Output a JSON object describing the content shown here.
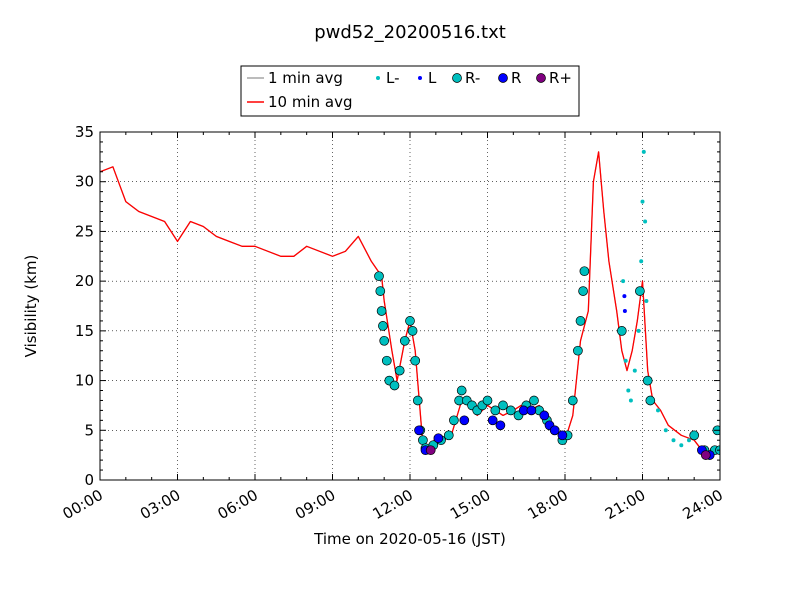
{
  "chart_data": {
    "type": "line",
    "title": "pwd52_20200516.txt",
    "xlabel": "Time on 2020-05-16 (JST)",
    "ylabel": "Visibility (km)",
    "xlim": [
      "00:00",
      "24:00"
    ],
    "ylim": [
      0,
      35
    ],
    "x_ticks": [
      "00:00",
      "03:00",
      "06:00",
      "09:00",
      "12:00",
      "15:00",
      "18:00",
      "21:00",
      "24:00"
    ],
    "y_ticks": [
      "0",
      "5",
      "10",
      "15",
      "20",
      "25",
      "30",
      "35"
    ],
    "grid": true,
    "legend_position": "top-center",
    "legend": [
      {
        "label": "1 min avg",
        "kind": "line",
        "color": "#a6a6a6"
      },
      {
        "label": "10 min avg",
        "kind": "line",
        "color": "#ff0000"
      },
      {
        "label": "L-",
        "kind": "small-dot",
        "color": "#00bfbf"
      },
      {
        "label": "L",
        "kind": "small-dot",
        "color": "#0000ff"
      },
      {
        "label": "R-",
        "kind": "big-dot",
        "color": "#00bfbf"
      },
      {
        "label": "R",
        "kind": "big-dot",
        "color": "#0000ff"
      },
      {
        "label": "R+",
        "kind": "big-dot",
        "color": "#800080"
      }
    ],
    "series": [
      {
        "name": "10 min avg",
        "color": "#ff0000",
        "x_hours": [
          0,
          0.5,
          1,
          1.5,
          2,
          2.5,
          3,
          3.5,
          4,
          4.5,
          5,
          5.5,
          6,
          6.5,
          7,
          7.5,
          8,
          8.5,
          9,
          9.5,
          10,
          10.5,
          10.9,
          11,
          11.3,
          11.5,
          11.8,
          12,
          12.2,
          12.5,
          12.8,
          13,
          13.3,
          13.6,
          14,
          14.3,
          14.6,
          15,
          15.3,
          15.6,
          16,
          16.3,
          16.6,
          17,
          17.3,
          17.6,
          18,
          18.3,
          18.6,
          18.9,
          19.1,
          19.3,
          19.5,
          19.7,
          20,
          20.2,
          20.4,
          20.6,
          20.8,
          21,
          21.2,
          21.4,
          21.7,
          22,
          22.5,
          23,
          23.3,
          23.6,
          24
        ],
        "values": [
          31,
          31.5,
          28,
          27,
          26.5,
          26,
          24,
          26,
          25.5,
          24.5,
          24,
          23.5,
          23.5,
          23,
          22.5,
          22.5,
          23.5,
          23,
          22.5,
          23,
          24.5,
          22,
          20.5,
          18,
          13,
          10,
          14,
          16,
          13,
          3.5,
          3,
          4.5,
          4,
          4.5,
          8,
          7.5,
          6.5,
          7.5,
          7,
          6.5,
          7,
          7.5,
          7,
          7.5,
          6.5,
          5,
          4,
          6.5,
          14,
          17,
          30,
          33,
          27,
          22,
          17,
          13,
          11,
          13,
          16,
          20,
          11,
          8,
          7,
          5.5,
          4.5,
          4,
          3,
          2.5,
          3
        ]
      },
      {
        "name": "1 min avg",
        "color": "#a6a6a6",
        "x_hours": [
          0,
          0.5,
          1,
          1.5,
          2,
          2.5,
          3,
          3.5,
          4,
          4.5,
          5,
          5.5,
          6,
          6.5,
          7,
          7.5,
          8,
          8.5,
          9,
          9.5,
          10,
          10.5,
          10.9,
          11,
          11.3,
          11.5,
          11.8,
          12,
          12.2,
          12.5,
          12.8,
          13,
          13.3,
          13.6,
          14,
          14.3,
          14.6,
          15,
          15.3,
          15.6,
          16,
          16.3,
          16.6,
          17,
          17.3,
          17.6,
          18,
          18.3,
          18.6,
          18.9,
          19.1,
          19.3,
          19.5,
          19.7,
          20,
          20.2,
          20.4,
          20.6,
          20.8,
          21,
          21.2,
          21.4,
          21.7,
          22,
          22.5,
          23,
          23.3,
          23.6,
          24
        ],
        "values": [
          31,
          31.5,
          28,
          27,
          26.5,
          26,
          24,
          26,
          25.5,
          24.5,
          24,
          23.5,
          23.5,
          23,
          22.5,
          22.5,
          23.5,
          23,
          22.5,
          23,
          24.5,
          22,
          20.5,
          18,
          13,
          10,
          14,
          16,
          13,
          3.5,
          3,
          4.5,
          4,
          4.5,
          8,
          7.5,
          6.5,
          7.5,
          7,
          6.5,
          7,
          7.5,
          7,
          7.5,
          6.5,
          5,
          4,
          6.5,
          14,
          17,
          30,
          33,
          27,
          22,
          17,
          13,
          11,
          13,
          16,
          20,
          11,
          8,
          7,
          5.5,
          4.5,
          4,
          3,
          2.5,
          3
        ]
      },
      {
        "name": "R-",
        "color": "#00bfbf",
        "kind": "big-dot",
        "points": [
          [
            10.8,
            20.5
          ],
          [
            10.85,
            19
          ],
          [
            10.9,
            17
          ],
          [
            10.95,
            15.5
          ],
          [
            11,
            14
          ],
          [
            11.1,
            12
          ],
          [
            11.2,
            10
          ],
          [
            11.4,
            9.5
          ],
          [
            11.6,
            11
          ],
          [
            11.8,
            14
          ],
          [
            12,
            16
          ],
          [
            12.1,
            15
          ],
          [
            12.2,
            12
          ],
          [
            12.3,
            8
          ],
          [
            12.4,
            5
          ],
          [
            12.5,
            4
          ],
          [
            12.6,
            3.2
          ],
          [
            12.9,
            3.5
          ],
          [
            13.2,
            4
          ],
          [
            13.5,
            4.5
          ],
          [
            13.7,
            6
          ],
          [
            13.9,
            8
          ],
          [
            14,
            9
          ],
          [
            14.2,
            8
          ],
          [
            14.4,
            7.5
          ],
          [
            14.6,
            7
          ],
          [
            14.8,
            7.5
          ],
          [
            15,
            8
          ],
          [
            15.3,
            7
          ],
          [
            15.6,
            7.5
          ],
          [
            15.9,
            7
          ],
          [
            16.2,
            6.5
          ],
          [
            16.5,
            7.5
          ],
          [
            16.8,
            8
          ],
          [
            17,
            7
          ],
          [
            17.3,
            6
          ],
          [
            17.6,
            5
          ],
          [
            17.9,
            4
          ],
          [
            18.1,
            4.5
          ],
          [
            18.3,
            8
          ],
          [
            18.5,
            13
          ],
          [
            18.6,
            16
          ],
          [
            18.7,
            19
          ],
          [
            18.75,
            21
          ],
          [
            20.2,
            15
          ],
          [
            20.9,
            19
          ],
          [
            21.2,
            10
          ],
          [
            21.3,
            8
          ],
          [
            23,
            4.5
          ],
          [
            23.4,
            3
          ],
          [
            23.8,
            3
          ],
          [
            23.9,
            5
          ],
          [
            24,
            3
          ]
        ]
      },
      {
        "name": "R",
        "color": "#0000ff",
        "kind": "big-dot",
        "points": [
          [
            12.35,
            5
          ],
          [
            12.6,
            3
          ],
          [
            13.1,
            4.2
          ],
          [
            14.1,
            6
          ],
          [
            15.2,
            6
          ],
          [
            15.5,
            5.5
          ],
          [
            16.4,
            7
          ],
          [
            16.7,
            7
          ],
          [
            17.2,
            6.5
          ],
          [
            17.4,
            5.5
          ],
          [
            17.6,
            5
          ],
          [
            17.9,
            4.5
          ],
          [
            23.3,
            3
          ],
          [
            23.6,
            2.5
          ]
        ]
      },
      {
        "name": "R+",
        "color": "#800080",
        "kind": "big-dot",
        "points": [
          [
            12.8,
            3
          ],
          [
            23.45,
            2.5
          ]
        ]
      },
      {
        "name": "L-",
        "color": "#00bfbf",
        "kind": "small-dot",
        "points": [
          [
            20.25,
            20
          ],
          [
            20.35,
            12
          ],
          [
            20.45,
            9
          ],
          [
            20.55,
            8
          ],
          [
            20.7,
            11
          ],
          [
            20.85,
            15
          ],
          [
            20.95,
            22
          ],
          [
            21.0,
            28
          ],
          [
            21.05,
            33
          ],
          [
            21.1,
            26
          ],
          [
            21.15,
            18
          ],
          [
            21.6,
            7
          ],
          [
            21.9,
            5
          ],
          [
            22.2,
            4
          ],
          [
            22.5,
            3.5
          ],
          [
            22.8,
            4
          ]
        ]
      },
      {
        "name": "L",
        "color": "#0000ff",
        "kind": "small-dot",
        "points": [
          [
            20.3,
            18.5
          ],
          [
            20.32,
            17
          ]
        ]
      }
    ]
  }
}
